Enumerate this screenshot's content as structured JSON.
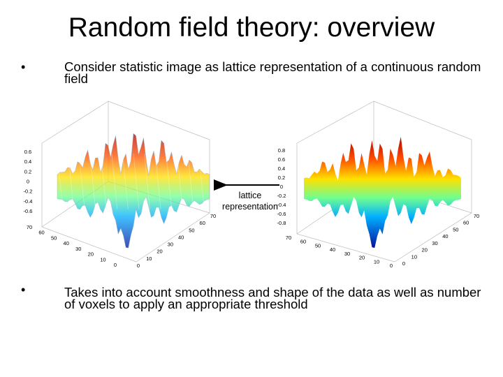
{
  "header": {
    "title": "Random field theory: overview"
  },
  "bullets": [
    "Consider statistic image as lattice representation of a continuous random field",
    "Takes into account smoothness and shape of the data as well as number of voxels to apply an appropriate threshold"
  ],
  "bullet_marker": "•",
  "arrow_label": [
    "lattice",
    "representation"
  ],
  "figures": [
    {
      "z_ticks": [
        "0.6",
        "0.4",
        "0.2",
        "0",
        "-0.2",
        "-0.4",
        "-0.6"
      ],
      "left_axis_ticks": [
        "70",
        "60",
        "50",
        "40",
        "30",
        "20",
        "10",
        "0"
      ],
      "right_axis_ticks": [
        "0",
        "10",
        "20",
        "30",
        "40",
        "50",
        "60",
        "70"
      ]
    },
    {
      "z_ticks": [
        "0.8",
        "0.6",
        "0.4",
        "0.2",
        "0",
        "-0.2",
        "-0.4",
        "-0.6",
        "-0.8"
      ],
      "left_axis_ticks": [
        "70",
        "60",
        "50",
        "40",
        "30",
        "20",
        "10",
        "0"
      ],
      "right_axis_ticks": [
        "0",
        "10",
        "20",
        "30",
        "40",
        "50",
        "60",
        "70"
      ]
    }
  ]
}
